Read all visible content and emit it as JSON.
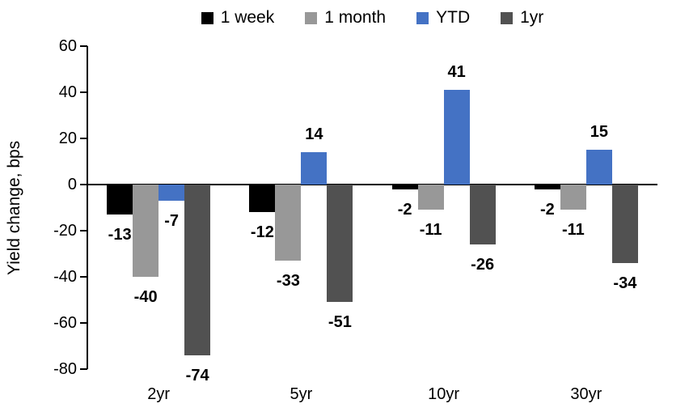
{
  "chart_data": {
    "type": "bar",
    "title": "",
    "xlabel": "",
    "ylabel": "Yield change, bps",
    "categories": [
      "2yr",
      "5yr",
      "10yr",
      "30yr"
    ],
    "series": [
      {
        "name": "1 week",
        "color": "#000000",
        "values": [
          -13,
          -12,
          -2,
          -2
        ]
      },
      {
        "name": "1 month",
        "color": "#989898",
        "values": [
          -40,
          -33,
          -11,
          -11
        ]
      },
      {
        "name": "YTD",
        "color": "#4472C4",
        "values": [
          -7,
          14,
          41,
          15
        ]
      },
      {
        "name": "1yr",
        "color": "#515151",
        "values": [
          -74,
          -51,
          -26,
          -34
        ]
      }
    ],
    "yticks": [
      60,
      40,
      20,
      0,
      -20,
      -40,
      -60,
      -80
    ],
    "ylim": [
      -80,
      60
    ],
    "grid": false,
    "data_labels": true,
    "legend_position": "top",
    "axis_color": "#000000"
  }
}
